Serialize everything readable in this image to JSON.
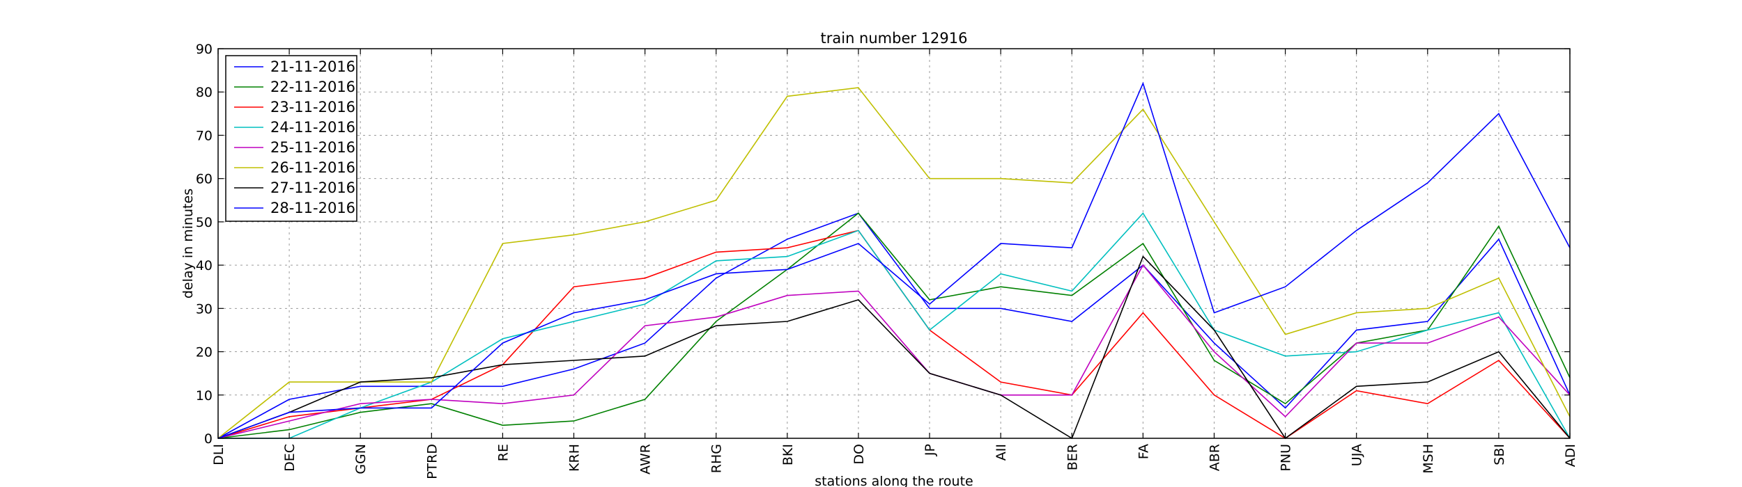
{
  "chart_data": {
    "type": "line",
    "title": "train number 12916",
    "xlabel": "stations along the route",
    "ylabel": "delay in minutes",
    "ylim": [
      0,
      90
    ],
    "yticks": [
      0,
      10,
      20,
      30,
      40,
      50,
      60,
      70,
      80,
      90
    ],
    "grid": true,
    "legend_position": "upper-left",
    "categories": [
      "DLI",
      "DEC",
      "GGN",
      "PTRD",
      "RE",
      "KRH",
      "AWR",
      "RHG",
      "BKI",
      "DO",
      "JP",
      "AII",
      "BER",
      "FA",
      "ABR",
      "PNU",
      "UJA",
      "MSH",
      "SBI",
      "ADI"
    ],
    "series": [
      {
        "name": "21-11-2016",
        "color": "#0000ff",
        "values": [
          0,
          9,
          12,
          12,
          12,
          16,
          22,
          37,
          46,
          52,
          30,
          30,
          27,
          40,
          22,
          7,
          25,
          27,
          46,
          10
        ]
      },
      {
        "name": "22-11-2016",
        "color": "#008000",
        "values": [
          0,
          2,
          6,
          8,
          3,
          4,
          9,
          27,
          39,
          52,
          32,
          35,
          33,
          45,
          18,
          8,
          22,
          25,
          49,
          14
        ]
      },
      {
        "name": "23-11-2016",
        "color": "#ff0000",
        "values": [
          0,
          5,
          7,
          9,
          17,
          35,
          37,
          43,
          44,
          48,
          25,
          13,
          10,
          29,
          10,
          0,
          11,
          8,
          18,
          0
        ]
      },
      {
        "name": "24-11-2016",
        "color": "#00bfbf",
        "values": [
          0,
          0,
          7,
          13,
          23,
          27,
          31,
          41,
          42,
          48,
          25,
          38,
          34,
          52,
          25,
          19,
          20,
          25,
          29,
          0
        ]
      },
      {
        "name": "25-11-2016",
        "color": "#bf00bf",
        "values": [
          0,
          4,
          8,
          9,
          8,
          10,
          26,
          28,
          33,
          34,
          15,
          10,
          10,
          40,
          20,
          5,
          22,
          22,
          28,
          10
        ]
      },
      {
        "name": "26-11-2016",
        "color": "#bfbf00",
        "values": [
          0,
          13,
          13,
          13,
          45,
          47,
          50,
          55,
          79,
          81,
          60,
          60,
          59,
          76,
          50,
          24,
          29,
          30,
          37,
          5
        ]
      },
      {
        "name": "27-11-2016",
        "color": "#000000",
        "values": [
          0,
          6,
          13,
          14,
          17,
          18,
          19,
          26,
          27,
          32,
          15,
          10,
          0,
          42,
          25,
          0,
          12,
          13,
          20,
          0
        ]
      },
      {
        "name": "28-11-2016",
        "color": "#0000ff",
        "values": [
          0,
          6,
          7,
          7,
          22,
          29,
          32,
          38,
          39,
          45,
          31,
          45,
          44,
          82,
          29,
          35,
          48,
          59,
          75,
          44
        ]
      }
    ]
  }
}
